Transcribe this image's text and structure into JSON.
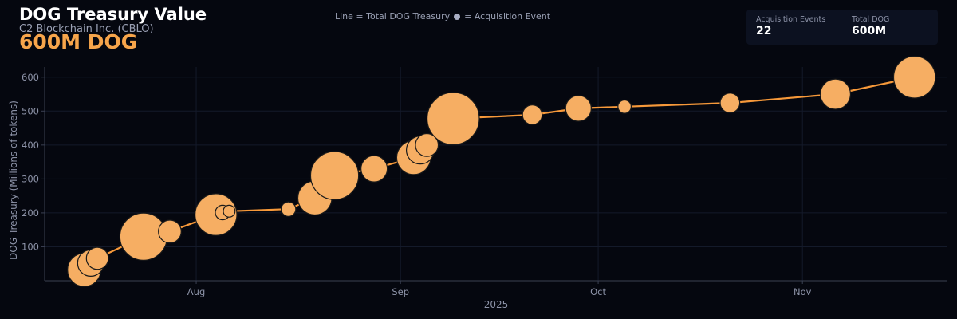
{
  "header": {
    "title": "DOG Treasury Value",
    "subtitle": "C2 Blockchain Inc. (CBLO)",
    "headline": "600M DOG"
  },
  "legend_note": {
    "line_text": "Line = Total DOG Treasury",
    "dot_text": "= Acquisition Event"
  },
  "stats": {
    "events_label": "Acquisition Events",
    "events_value": "22",
    "total_label": "Total DOG",
    "total_value": "600M"
  },
  "colors": {
    "background": "#05070f",
    "line": "#f7993a",
    "bubble": "#f6ae63",
    "bubble_stroke": "#1a1a1a",
    "grid": "#141a2a"
  },
  "chart_data": {
    "type": "scatter",
    "title": "DOG Treasury Value",
    "xlabel": "2025",
    "ylabel": "DOG Treasury (Millions of tokens)",
    "xlim": [
      "2025-07-09",
      "2025-11-23"
    ],
    "ylim": [
      0,
      630
    ],
    "yticks": [
      100,
      200,
      300,
      400,
      500,
      600
    ],
    "xticks": [
      {
        "date": "2025-08-01",
        "label": "Aug"
      },
      {
        "date": "2025-09-01",
        "label": "Sep"
      },
      {
        "date": "2025-10-01",
        "label": "Oct"
      },
      {
        "date": "2025-11-01",
        "label": "Nov"
      }
    ],
    "grid": true,
    "series": [
      {
        "name": "Total DOG Treasury",
        "points": [
          {
            "date": "2025-07-15",
            "value": 32,
            "acquired": 32
          },
          {
            "date": "2025-07-16",
            "value": 52,
            "acquired": 20
          },
          {
            "date": "2025-07-17",
            "value": 66,
            "acquired": 14
          },
          {
            "date": "2025-07-24",
            "value": 130,
            "acquired": 64
          },
          {
            "date": "2025-07-28",
            "value": 145,
            "acquired": 15
          },
          {
            "date": "2025-08-04",
            "value": 195,
            "acquired": 50
          },
          {
            "date": "2025-08-05",
            "value": 201,
            "acquired": 6
          },
          {
            "date": "2025-08-06",
            "value": 205,
            "acquired": 4
          },
          {
            "date": "2025-08-15",
            "value": 211,
            "acquired": 6
          },
          {
            "date": "2025-08-19",
            "value": 244,
            "acquired": 33
          },
          {
            "date": "2025-08-22",
            "value": 310,
            "acquired": 66
          },
          {
            "date": "2025-08-28",
            "value": 330,
            "acquired": 20
          },
          {
            "date": "2025-09-03",
            "value": 363,
            "acquired": 33
          },
          {
            "date": "2025-09-04",
            "value": 385,
            "acquired": 22
          },
          {
            "date": "2025-09-05",
            "value": 400,
            "acquired": 15
          },
          {
            "date": "2025-09-09",
            "value": 478,
            "acquired": 78
          },
          {
            "date": "2025-09-21",
            "value": 489,
            "acquired": 11
          },
          {
            "date": "2025-09-28",
            "value": 508,
            "acquired": 19
          },
          {
            "date": "2025-10-05",
            "value": 513,
            "acquired": 5
          },
          {
            "date": "2025-10-21",
            "value": 524,
            "acquired": 11
          },
          {
            "date": "2025-11-06",
            "value": 550,
            "acquired": 26
          },
          {
            "date": "2025-11-18",
            "value": 600,
            "acquired": 50
          }
        ]
      }
    ]
  }
}
